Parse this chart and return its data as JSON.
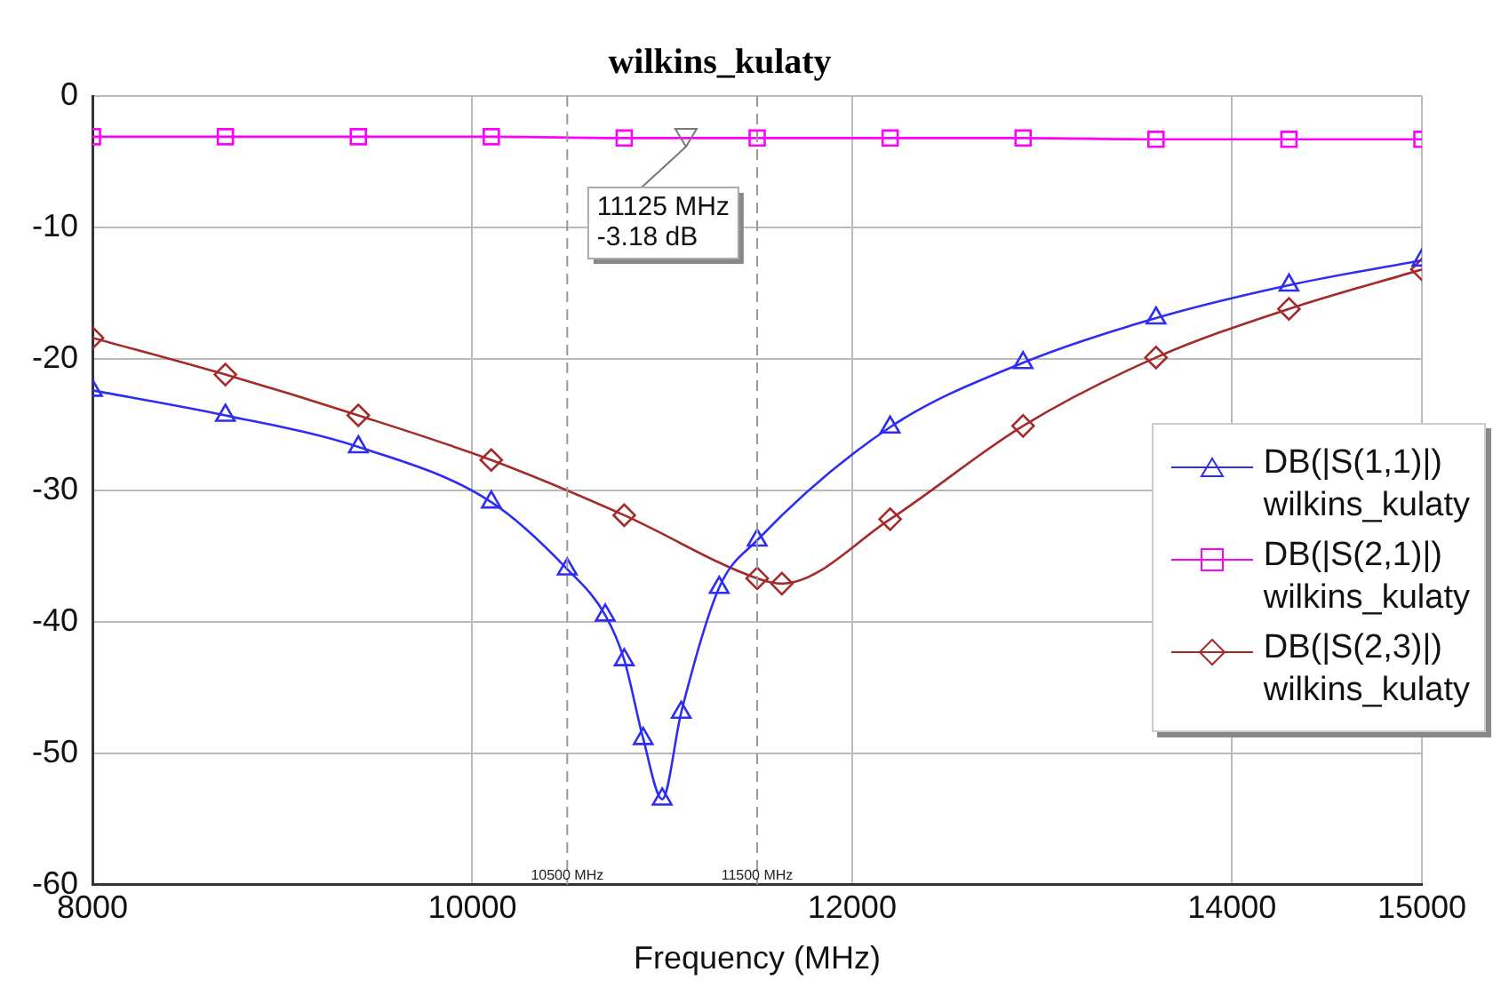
{
  "chart_data": {
    "type": "line",
    "title": "wilkins_kulaty",
    "xlabel": "Frequency (MHz)",
    "xlim": [
      8000,
      15000
    ],
    "xticks": [
      8000,
      10000,
      12000,
      14000,
      15000
    ],
    "ylim": [
      -60,
      0
    ],
    "yticks": [
      -60,
      -50,
      -40,
      -30,
      -20,
      -10,
      0
    ],
    "grid": true,
    "legend": "right",
    "line_style": "solid",
    "series": [
      {
        "name": "DB(|S(1,1)|)\nwilkins_kulaty",
        "color": "#2e2ef0",
        "marker": "triangle",
        "x": [
          8000,
          8700,
          9400,
          10100,
          10500,
          10700,
          10800,
          10900,
          11000,
          11100,
          11300,
          11500,
          12200,
          12900,
          13600,
          14300,
          15000
        ],
        "values": [
          -22.4,
          -24.3,
          -26.7,
          -30.9,
          -36.0,
          -39.5,
          -42.9,
          -48.9,
          -53.5,
          -46.9,
          -37.4,
          -33.8,
          -25.2,
          -20.3,
          -16.9,
          -14.4,
          -12.5
        ]
      },
      {
        "name": "DB(|S(2,1)|)\nwilkins_kulaty",
        "color": "#ff00ff",
        "marker": "square",
        "x": [
          8000,
          8700,
          9400,
          10100,
          10800,
          11500,
          12200,
          12900,
          13600,
          14300,
          15000
        ],
        "values": [
          -3.1,
          -3.1,
          -3.1,
          -3.1,
          -3.2,
          -3.2,
          -3.2,
          -3.2,
          -3.3,
          -3.3,
          -3.3
        ]
      },
      {
        "name": "DB(|S(2,3)|)\nwilkins_kulaty",
        "color": "#a52a2a",
        "marker": "diamond",
        "x": [
          8000,
          8700,
          9400,
          10100,
          10800,
          11500,
          11630,
          12200,
          12900,
          13600,
          14300,
          15000
        ],
        "values": [
          -18.4,
          -21.2,
          -24.3,
          -27.7,
          -31.9,
          -36.7,
          -37.1,
          -32.2,
          -25.1,
          -19.9,
          -16.2,
          -13.2
        ]
      }
    ],
    "ref_lines": [
      {
        "axis": "x",
        "value": 10500,
        "label": "10500 MHz",
        "line_style": "dashed",
        "color": "#999999"
      },
      {
        "axis": "x",
        "value": 11500,
        "label": "11500 MHz",
        "line_style": "dashed",
        "color": "#999999"
      }
    ],
    "annotations": [
      {
        "text": "11125 MHz\n-3.18 dB",
        "x": 11125,
        "y": -3.18
      }
    ]
  }
}
